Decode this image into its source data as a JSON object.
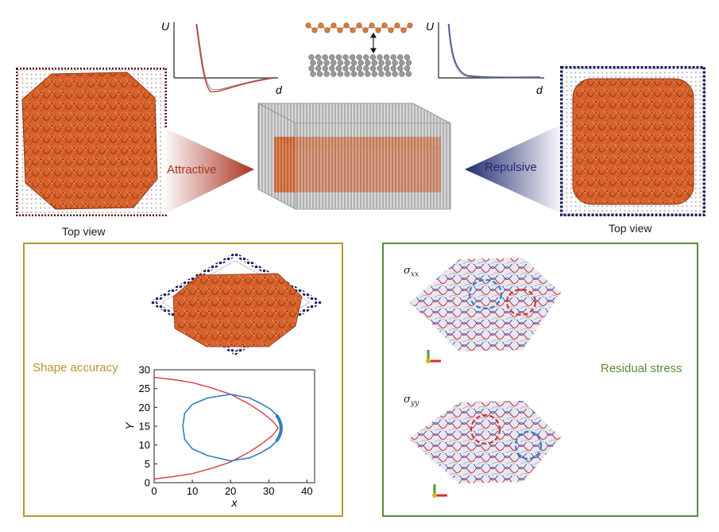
{
  "potential_plots": {
    "left": {
      "y_axis_label": "U",
      "x_axis_label": "d",
      "curve_color": "#c0392b"
    },
    "right": {
      "y_axis_label": "U",
      "x_axis_label": "d",
      "curve_color": "#3a4aa0"
    }
  },
  "top_row": {
    "left_caption": "Top view",
    "right_caption": "Top view",
    "attractive_label": "Attractive",
    "repulsive_label": "Repulsive",
    "attractive_color": "#a8321e",
    "repulsive_color": "#1f2a6e"
  },
  "shape_panel": {
    "title": "Shape accuracy",
    "title_color": "#b8962e",
    "border_color": "#b8962e"
  },
  "stress_panel": {
    "title": "Residual stress",
    "title_color": "#5b8c3a",
    "border_color": "#5b8c3a",
    "sigma_xx_base": "σ",
    "sigma_xx_sub": "xx",
    "sigma_yy_base": "σ",
    "sigma_yy_sub": "yy"
  },
  "chart_data": {
    "type": "line",
    "xlabel": "x",
    "ylabel": "Y",
    "xlim": [
      0,
      42
    ],
    "ylim": [
      0,
      30
    ],
    "xticks": [
      0,
      10,
      20,
      30,
      40
    ],
    "yticks": [
      0,
      5,
      10,
      15,
      20,
      25,
      30
    ],
    "series": [
      {
        "color": "#d62f2f",
        "x": [
          0,
          5,
          10,
          15,
          20,
          25,
          28,
          31,
          32.5,
          31,
          28,
          25,
          20,
          15,
          10,
          5,
          0
        ],
        "y": [
          28,
          27.4,
          26.6,
          25.2,
          23.5,
          20.8,
          18.8,
          16.4,
          14.5,
          12.6,
          10.2,
          8.2,
          5.5,
          3.8,
          2.4,
          1.6,
          1.0
        ]
      },
      {
        "color": "#2f7fc1",
        "x": [
          20,
          14,
          10,
          8,
          7.5,
          8,
          10,
          14,
          20,
          25,
          28,
          30.5,
          32,
          33,
          33.5,
          33,
          32,
          30.5,
          28,
          25,
          20
        ],
        "y": [
          23.5,
          22.5,
          20.8,
          18.5,
          15,
          11.5,
          9,
          7.2,
          5.8,
          6.6,
          8,
          9.5,
          11,
          12.5,
          14.5,
          16.5,
          18,
          19.5,
          21,
          22.5,
          23.5
        ]
      }
    ]
  }
}
